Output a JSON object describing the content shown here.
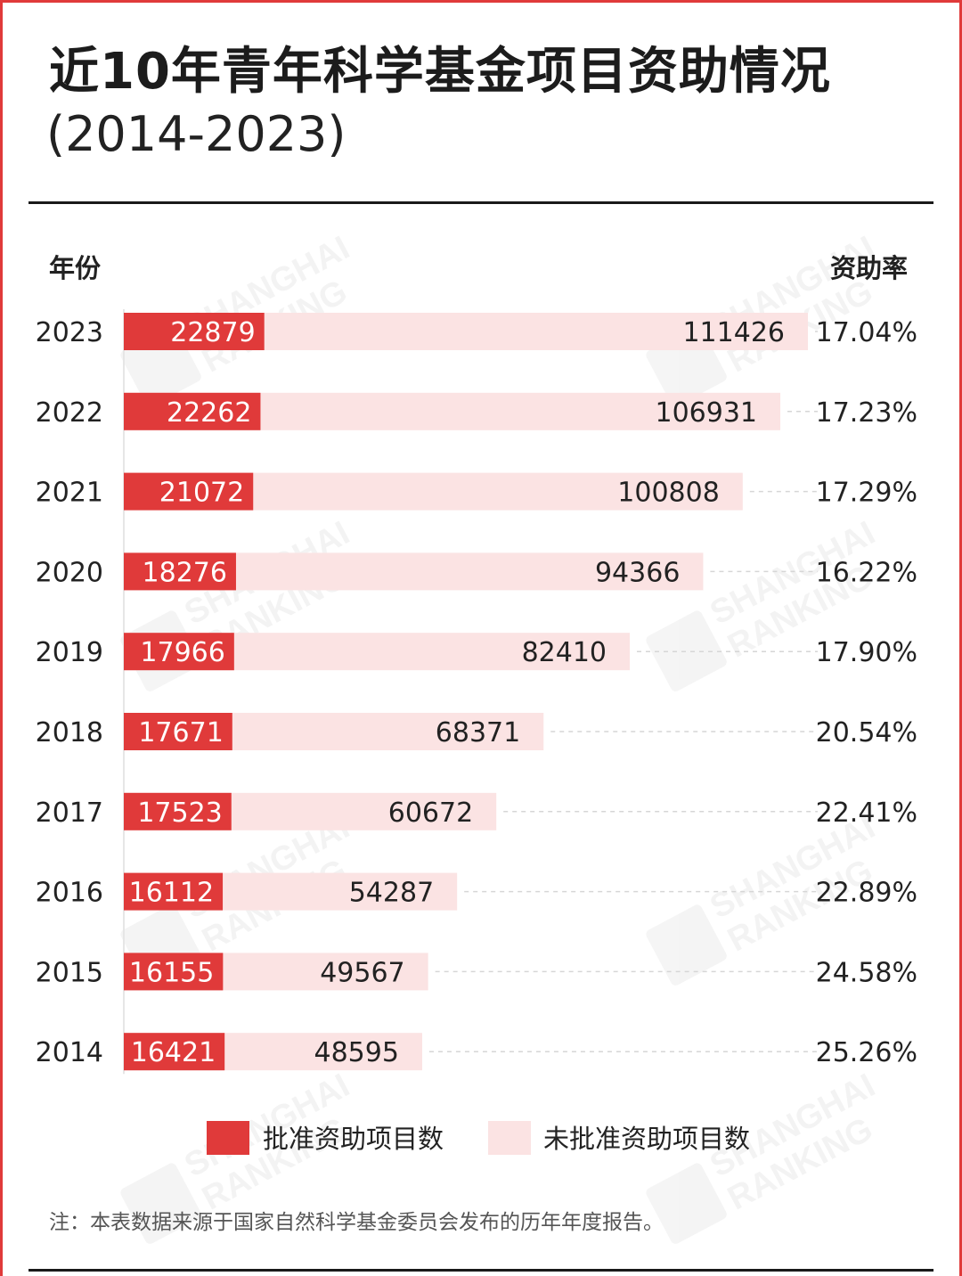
{
  "title": "近10年青年科学基金项目资助情况",
  "subtitle": "(2014-2023)",
  "column_headers": {
    "year": "年份",
    "rate": "资助率"
  },
  "watermark": {
    "line1": "SHANGHAI",
    "line2": "RANKING"
  },
  "legend": [
    {
      "label": "批准资助项目数",
      "color": "#e03a3a"
    },
    {
      "label": "未批准资助项目数",
      "color": "#fbe3e3"
    }
  ],
  "note": "注：本表数据来源于国家自然科学基金委员会发布的历年年度报告。",
  "colors": {
    "approved": "#e03a3a",
    "rejected": "#fbe3e3",
    "text": "#1c1c1c"
  },
  "chart_data": {
    "type": "bar",
    "orientation": "horizontal",
    "stacked": true,
    "categories": [
      "2023",
      "2022",
      "2021",
      "2020",
      "2019",
      "2018",
      "2017",
      "2016",
      "2015",
      "2014"
    ],
    "series": [
      {
        "name": "批准资助项目数",
        "values": [
          22879,
          22262,
          21072,
          18276,
          17966,
          17671,
          17523,
          16112,
          16155,
          16421
        ]
      },
      {
        "name": "未批准资助项目数",
        "values": [
          111426,
          106931,
          100808,
          94366,
          82410,
          68371,
          60672,
          54287,
          49567,
          48595
        ]
      }
    ],
    "rate_labels": [
      "17.04%",
      "17.23%",
      "17.29%",
      "16.22%",
      "17.90%",
      "20.54%",
      "22.41%",
      "22.89%",
      "24.58%",
      "25.26%"
    ]
  }
}
